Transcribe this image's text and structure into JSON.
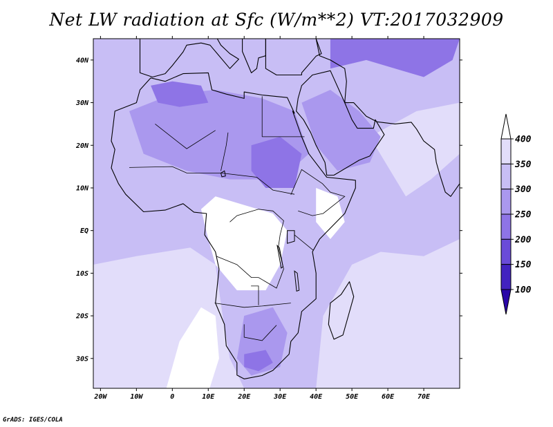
{
  "title": "Net LW radiation at Sfc (W/m**2) VT:2017032909",
  "credit": "GrADS: IGES/COLA",
  "map": {
    "projection": "latlon",
    "lon_range": [
      -22,
      80
    ],
    "lat_range": [
      -37,
      45
    ],
    "lon_ticks": [
      {
        "value": -20,
        "label": "20W"
      },
      {
        "value": -10,
        "label": "10W"
      },
      {
        "value": 0,
        "label": "0"
      },
      {
        "value": 10,
        "label": "10E"
      },
      {
        "value": 20,
        "label": "20E"
      },
      {
        "value": 30,
        "label": "30E"
      },
      {
        "value": 40,
        "label": "40E"
      },
      {
        "value": 50,
        "label": "50E"
      },
      {
        "value": 60,
        "label": "60E"
      },
      {
        "value": 70,
        "label": "70E"
      }
    ],
    "lat_ticks": [
      {
        "value": 40,
        "label": "40N"
      },
      {
        "value": 30,
        "label": "30N"
      },
      {
        "value": 20,
        "label": "20N"
      },
      {
        "value": 10,
        "label": "10N"
      },
      {
        "value": 0,
        "label": "EQ"
      },
      {
        "value": -10,
        "label": "10S"
      },
      {
        "value": -20,
        "label": "20S"
      },
      {
        "value": -30,
        "label": "30S"
      }
    ]
  },
  "colorbar": {
    "levels": [
      100,
      150,
      200,
      250,
      300,
      350,
      400
    ],
    "colors": [
      "#2a06a8",
      "#4223c0",
      "#6a4bd8",
      "#8e74e6",
      "#aa98ee",
      "#c8bef5",
      "#e2ddfa",
      "#ffffff"
    ]
  },
  "colors": {
    "background_field": "#c8bef5",
    "ocean_light": "#e2ddfa",
    "land_mid": "#aa98ee",
    "land_dark": "#8e74e6",
    "clear": "#ffffff",
    "coast": "#000000"
  }
}
